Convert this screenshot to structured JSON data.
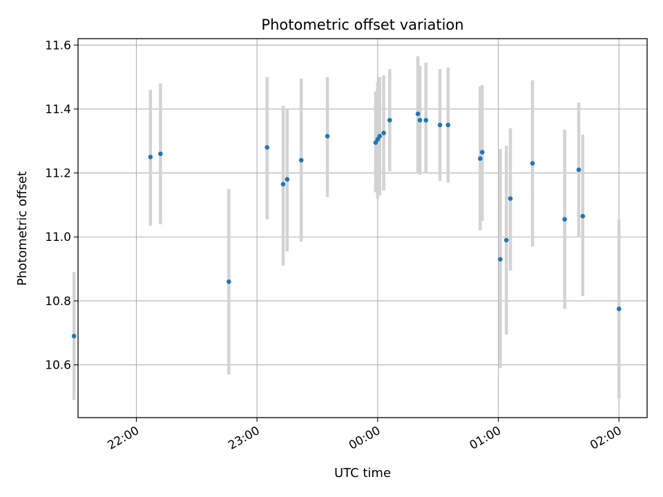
{
  "chart_data": {
    "type": "scatter",
    "title": "Photometric offset variation",
    "xlabel": "UTC time",
    "ylabel": "Photometric offset",
    "xlim": [
      "21:31",
      "02:14"
    ],
    "ylim": [
      10.435,
      11.62
    ],
    "x_ticks": [
      "22:00",
      "23:00",
      "00:00",
      "01:00",
      "02:00"
    ],
    "y_ticks": [
      "10.6",
      "10.8",
      "11.0",
      "11.2",
      "11.4",
      "11.6"
    ],
    "grid": true,
    "colors": {
      "point": "#1f77b4",
      "errorbar": "#d3d3d3",
      "grid": "#b0b0b0"
    },
    "points": [
      {
        "t": "21:29",
        "y": 10.69,
        "lo": 10.49,
        "hi": 10.89
      },
      {
        "t": "22:07",
        "y": 11.25,
        "lo": 11.035,
        "hi": 11.46
      },
      {
        "t": "22:12",
        "y": 11.26,
        "lo": 11.04,
        "hi": 11.48
      },
      {
        "t": "22:46",
        "y": 10.86,
        "lo": 10.57,
        "hi": 11.15
      },
      {
        "t": "23:05",
        "y": 11.28,
        "lo": 11.055,
        "hi": 11.5
      },
      {
        "t": "23:13",
        "y": 11.165,
        "lo": 10.91,
        "hi": 11.41
      },
      {
        "t": "23:15",
        "y": 11.18,
        "lo": 10.955,
        "hi": 11.4
      },
      {
        "t": "23:22",
        "y": 11.24,
        "lo": 10.985,
        "hi": 11.495
      },
      {
        "t": "23:35",
        "y": 11.315,
        "lo": 11.125,
        "hi": 11.5
      },
      {
        "t": "23:59",
        "y": 11.295,
        "lo": 11.14,
        "hi": 11.455
      },
      {
        "t": "00:00",
        "y": 11.305,
        "lo": 11.12,
        "hi": 11.485
      },
      {
        "t": "00:01",
        "y": 11.315,
        "lo": 11.13,
        "hi": 11.5
      },
      {
        "t": "00:03",
        "y": 11.325,
        "lo": 11.145,
        "hi": 11.505
      },
      {
        "t": "00:06",
        "y": 11.365,
        "lo": 11.205,
        "hi": 11.525
      },
      {
        "t": "00:20",
        "y": 11.385,
        "lo": 11.2,
        "hi": 11.565
      },
      {
        "t": "00:21",
        "y": 11.365,
        "lo": 11.195,
        "hi": 11.535
      },
      {
        "t": "00:24",
        "y": 11.365,
        "lo": 11.2,
        "hi": 11.545
      },
      {
        "t": "00:31",
        "y": 11.35,
        "lo": 11.175,
        "hi": 11.525
      },
      {
        "t": "00:35",
        "y": 11.35,
        "lo": 11.17,
        "hi": 11.53
      },
      {
        "t": "00:51",
        "y": 11.245,
        "lo": 11.02,
        "hi": 11.47
      },
      {
        "t": "00:52",
        "y": 11.265,
        "lo": 11.05,
        "hi": 11.475
      },
      {
        "t": "01:01",
        "y": 10.93,
        "lo": 10.59,
        "hi": 11.275
      },
      {
        "t": "01:04",
        "y": 10.99,
        "lo": 10.695,
        "hi": 11.285
      },
      {
        "t": "01:06",
        "y": 11.12,
        "lo": 10.895,
        "hi": 11.34
      },
      {
        "t": "01:17",
        "y": 11.23,
        "lo": 10.97,
        "hi": 11.49
      },
      {
        "t": "01:33",
        "y": 11.055,
        "lo": 10.775,
        "hi": 11.335
      },
      {
        "t": "01:40",
        "y": 11.21,
        "lo": 11.0,
        "hi": 11.42
      },
      {
        "t": "01:42",
        "y": 11.065,
        "lo": 10.815,
        "hi": 11.32
      },
      {
        "t": "02:00",
        "y": 10.775,
        "lo": 10.495,
        "hi": 11.055
      }
    ]
  }
}
